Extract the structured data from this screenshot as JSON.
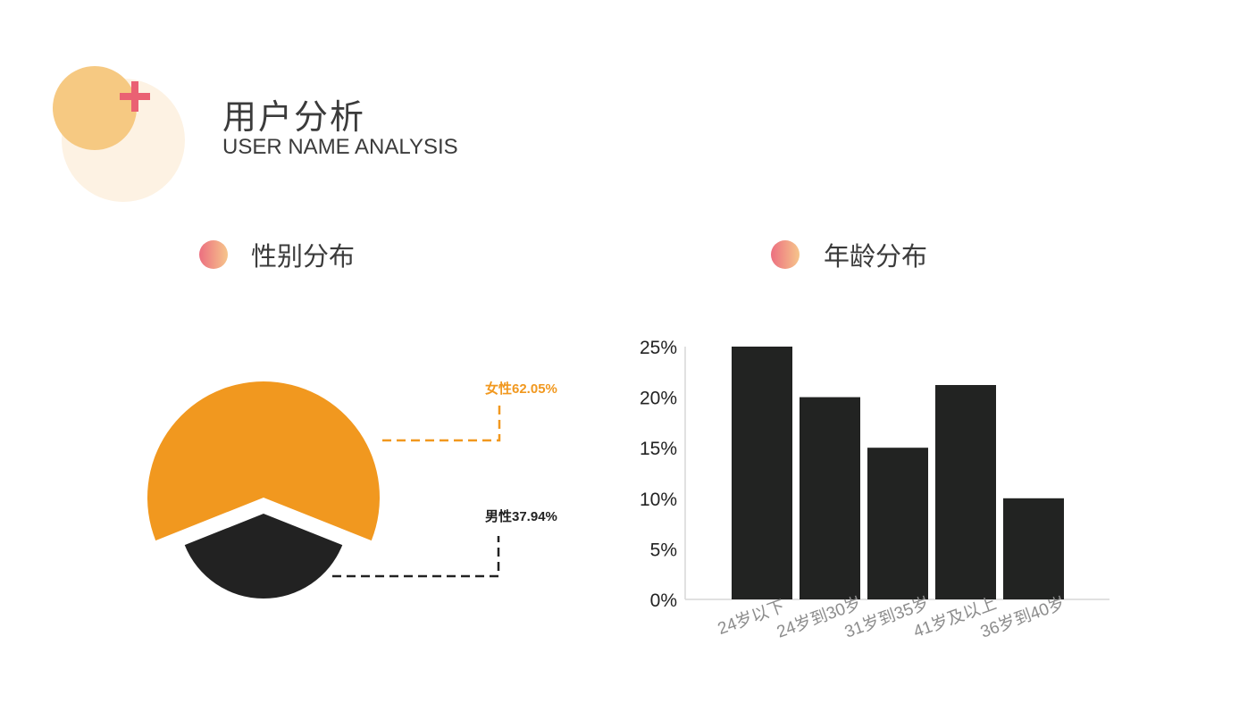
{
  "header": {
    "title": "用户分析",
    "subtitle": "USER NAME ANALYSIS"
  },
  "colors": {
    "female": "#f1981f",
    "male": "#222222",
    "bar": "#222322",
    "accent_plus": "#ea6173",
    "circle_big": "#fdf2e3",
    "circle_small": "#f6c982"
  },
  "sections": {
    "gender": "性别分布",
    "age": "年龄分布"
  },
  "chart_data": [
    {
      "type": "pie",
      "categories": [
        "女性",
        "男性"
      ],
      "values": [
        62.05,
        37.94
      ],
      "labels": [
        "女性62.05%",
        "男性37.94%"
      ]
    },
    {
      "type": "bar",
      "categories": [
        "24岁以下",
        "24岁到30岁",
        "31岁到35岁",
        "41岁及以上",
        "36岁到40岁"
      ],
      "values": [
        25,
        20,
        15,
        21.2,
        10
      ],
      "ylim": [
        0,
        25
      ],
      "yticks": [
        "0%",
        "5%",
        "10%",
        "15%",
        "20%",
        "25%"
      ],
      "grid": false
    }
  ]
}
